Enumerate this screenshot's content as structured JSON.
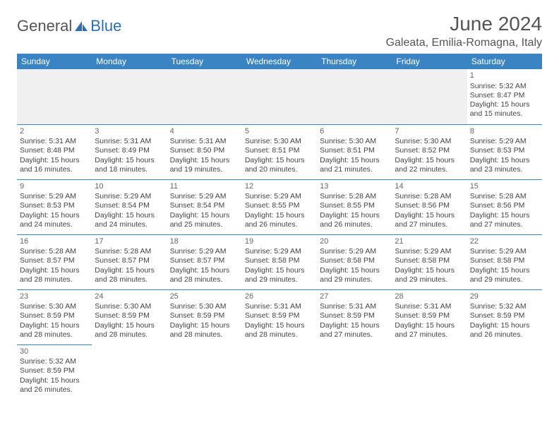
{
  "logo": {
    "part1": "General",
    "part2": "Blue"
  },
  "title": "June 2024",
  "location": "Galeata, Emilia-Romagna, Italy",
  "colors": {
    "header_bg": "#3b84c4",
    "header_text": "#ffffff",
    "border": "#3b84c4",
    "empty_bg": "#f0f0f0",
    "text": "#444444",
    "title_color": "#555555"
  },
  "weekdays": [
    "Sunday",
    "Monday",
    "Tuesday",
    "Wednesday",
    "Thursday",
    "Friday",
    "Saturday"
  ],
  "weeks": [
    [
      null,
      null,
      null,
      null,
      null,
      null,
      {
        "d": "1",
        "sr": "Sunrise: 5:32 AM",
        "ss": "Sunset: 8:47 PM",
        "dl1": "Daylight: 15 hours",
        "dl2": "and 15 minutes."
      }
    ],
    [
      {
        "d": "2",
        "sr": "Sunrise: 5:31 AM",
        "ss": "Sunset: 8:48 PM",
        "dl1": "Daylight: 15 hours",
        "dl2": "and 16 minutes."
      },
      {
        "d": "3",
        "sr": "Sunrise: 5:31 AM",
        "ss": "Sunset: 8:49 PM",
        "dl1": "Daylight: 15 hours",
        "dl2": "and 18 minutes."
      },
      {
        "d": "4",
        "sr": "Sunrise: 5:31 AM",
        "ss": "Sunset: 8:50 PM",
        "dl1": "Daylight: 15 hours",
        "dl2": "and 19 minutes."
      },
      {
        "d": "5",
        "sr": "Sunrise: 5:30 AM",
        "ss": "Sunset: 8:51 PM",
        "dl1": "Daylight: 15 hours",
        "dl2": "and 20 minutes."
      },
      {
        "d": "6",
        "sr": "Sunrise: 5:30 AM",
        "ss": "Sunset: 8:51 PM",
        "dl1": "Daylight: 15 hours",
        "dl2": "and 21 minutes."
      },
      {
        "d": "7",
        "sr": "Sunrise: 5:30 AM",
        "ss": "Sunset: 8:52 PM",
        "dl1": "Daylight: 15 hours",
        "dl2": "and 22 minutes."
      },
      {
        "d": "8",
        "sr": "Sunrise: 5:29 AM",
        "ss": "Sunset: 8:53 PM",
        "dl1": "Daylight: 15 hours",
        "dl2": "and 23 minutes."
      }
    ],
    [
      {
        "d": "9",
        "sr": "Sunrise: 5:29 AM",
        "ss": "Sunset: 8:53 PM",
        "dl1": "Daylight: 15 hours",
        "dl2": "and 24 minutes."
      },
      {
        "d": "10",
        "sr": "Sunrise: 5:29 AM",
        "ss": "Sunset: 8:54 PM",
        "dl1": "Daylight: 15 hours",
        "dl2": "and 24 minutes."
      },
      {
        "d": "11",
        "sr": "Sunrise: 5:29 AM",
        "ss": "Sunset: 8:54 PM",
        "dl1": "Daylight: 15 hours",
        "dl2": "and 25 minutes."
      },
      {
        "d": "12",
        "sr": "Sunrise: 5:29 AM",
        "ss": "Sunset: 8:55 PM",
        "dl1": "Daylight: 15 hours",
        "dl2": "and 26 minutes."
      },
      {
        "d": "13",
        "sr": "Sunrise: 5:28 AM",
        "ss": "Sunset: 8:55 PM",
        "dl1": "Daylight: 15 hours",
        "dl2": "and 26 minutes."
      },
      {
        "d": "14",
        "sr": "Sunrise: 5:28 AM",
        "ss": "Sunset: 8:56 PM",
        "dl1": "Daylight: 15 hours",
        "dl2": "and 27 minutes."
      },
      {
        "d": "15",
        "sr": "Sunrise: 5:28 AM",
        "ss": "Sunset: 8:56 PM",
        "dl1": "Daylight: 15 hours",
        "dl2": "and 27 minutes."
      }
    ],
    [
      {
        "d": "16",
        "sr": "Sunrise: 5:28 AM",
        "ss": "Sunset: 8:57 PM",
        "dl1": "Daylight: 15 hours",
        "dl2": "and 28 minutes."
      },
      {
        "d": "17",
        "sr": "Sunrise: 5:28 AM",
        "ss": "Sunset: 8:57 PM",
        "dl1": "Daylight: 15 hours",
        "dl2": "and 28 minutes."
      },
      {
        "d": "18",
        "sr": "Sunrise: 5:29 AM",
        "ss": "Sunset: 8:57 PM",
        "dl1": "Daylight: 15 hours",
        "dl2": "and 28 minutes."
      },
      {
        "d": "19",
        "sr": "Sunrise: 5:29 AM",
        "ss": "Sunset: 8:58 PM",
        "dl1": "Daylight: 15 hours",
        "dl2": "and 29 minutes."
      },
      {
        "d": "20",
        "sr": "Sunrise: 5:29 AM",
        "ss": "Sunset: 8:58 PM",
        "dl1": "Daylight: 15 hours",
        "dl2": "and 29 minutes."
      },
      {
        "d": "21",
        "sr": "Sunrise: 5:29 AM",
        "ss": "Sunset: 8:58 PM",
        "dl1": "Daylight: 15 hours",
        "dl2": "and 29 minutes."
      },
      {
        "d": "22",
        "sr": "Sunrise: 5:29 AM",
        "ss": "Sunset: 8:58 PM",
        "dl1": "Daylight: 15 hours",
        "dl2": "and 29 minutes."
      }
    ],
    [
      {
        "d": "23",
        "sr": "Sunrise: 5:30 AM",
        "ss": "Sunset: 8:59 PM",
        "dl1": "Daylight: 15 hours",
        "dl2": "and 28 minutes."
      },
      {
        "d": "24",
        "sr": "Sunrise: 5:30 AM",
        "ss": "Sunset: 8:59 PM",
        "dl1": "Daylight: 15 hours",
        "dl2": "and 28 minutes."
      },
      {
        "d": "25",
        "sr": "Sunrise: 5:30 AM",
        "ss": "Sunset: 8:59 PM",
        "dl1": "Daylight: 15 hours",
        "dl2": "and 28 minutes."
      },
      {
        "d": "26",
        "sr": "Sunrise: 5:31 AM",
        "ss": "Sunset: 8:59 PM",
        "dl1": "Daylight: 15 hours",
        "dl2": "and 28 minutes."
      },
      {
        "d": "27",
        "sr": "Sunrise: 5:31 AM",
        "ss": "Sunset: 8:59 PM",
        "dl1": "Daylight: 15 hours",
        "dl2": "and 27 minutes."
      },
      {
        "d": "28",
        "sr": "Sunrise: 5:31 AM",
        "ss": "Sunset: 8:59 PM",
        "dl1": "Daylight: 15 hours",
        "dl2": "and 27 minutes."
      },
      {
        "d": "29",
        "sr": "Sunrise: 5:32 AM",
        "ss": "Sunset: 8:59 PM",
        "dl1": "Daylight: 15 hours",
        "dl2": "and 26 minutes."
      }
    ],
    [
      {
        "d": "30",
        "sr": "Sunrise: 5:32 AM",
        "ss": "Sunset: 8:59 PM",
        "dl1": "Daylight: 15 hours",
        "dl2": "and 26 minutes."
      },
      null,
      null,
      null,
      null,
      null,
      null
    ]
  ]
}
